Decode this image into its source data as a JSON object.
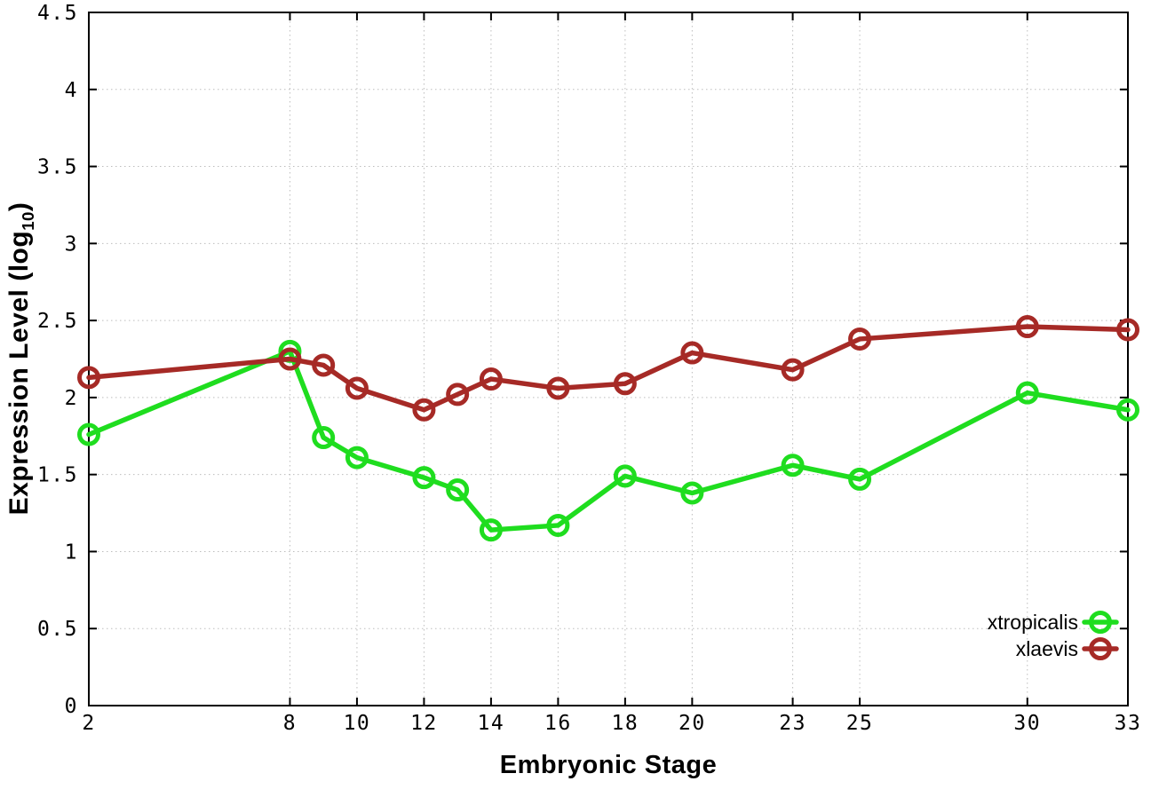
{
  "page": {
    "background": "#ffffff"
  },
  "chart_data": {
    "type": "line",
    "title": "",
    "xlabel": "Embryonic Stage",
    "ylabel": "Expression Level (log10)",
    "ylabel_prefix": "Expression Level (log",
    "ylabel_sub": "10",
    "ylabel_suffix": ")",
    "xlim": [
      2,
      33
    ],
    "ylim": [
      0,
      4.5
    ],
    "grid": true,
    "legend_position": "inside-bottom-right",
    "axis_color": "#000000",
    "grid_color": "#bdbdbd",
    "x": [
      2,
      8,
      9,
      10,
      12,
      13,
      14,
      16,
      18,
      20,
      23,
      25,
      30,
      33
    ],
    "xtick_values": [
      2,
      8,
      10,
      12,
      14,
      16,
      18,
      20,
      23,
      25,
      30,
      33
    ],
    "xtick_labels": [
      "2",
      "8",
      "10",
      "12",
      "14",
      "16",
      "18",
      "20",
      "23",
      "25",
      "30",
      "33"
    ],
    "ytick_values": [
      0,
      0.5,
      1,
      1.5,
      2,
      2.5,
      3,
      3.5,
      4,
      4.5
    ],
    "ytick_labels": [
      "0",
      "0.5",
      "1",
      "1.5",
      "2",
      "2.5",
      "3",
      "3.5",
      "4",
      "4.5"
    ],
    "series": [
      {
        "name": "xtropicalis",
        "color": "#1fdd1f",
        "values": [
          1.76,
          2.3,
          1.74,
          1.61,
          1.48,
          1.4,
          1.14,
          1.17,
          1.49,
          1.38,
          1.56,
          1.47,
          2.03,
          1.92
        ]
      },
      {
        "name": "xlaevis",
        "color": "#a62a26",
        "values": [
          2.13,
          2.25,
          2.21,
          2.06,
          1.92,
          2.02,
          2.12,
          2.06,
          2.09,
          2.29,
          2.18,
          2.38,
          2.46,
          2.44
        ]
      }
    ]
  }
}
